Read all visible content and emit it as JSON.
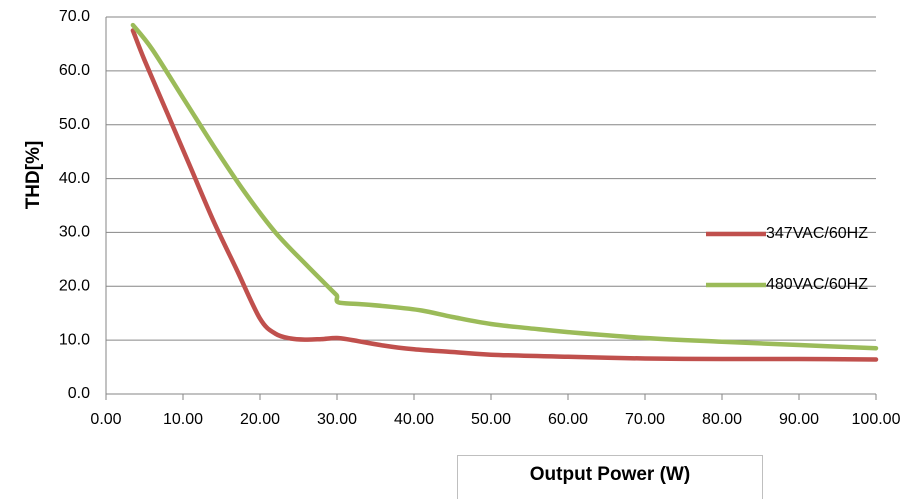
{
  "chart_data": {
    "type": "line",
    "xlabel": "Output Power (W)",
    "ylabel": "THD[%]",
    "xlim": [
      0,
      100
    ],
    "ylim": [
      0,
      70
    ],
    "x_ticks": [
      "0.00",
      "10.00",
      "20.00",
      "30.00",
      "40.00",
      "50.00",
      "60.00",
      "70.00",
      "80.00",
      "90.00",
      "100.00"
    ],
    "y_ticks": [
      "0.0",
      "10.0",
      "20.0",
      "30.0",
      "40.0",
      "50.0",
      "60.0",
      "70.0"
    ],
    "grid": "horizontal",
    "legend_position": "right",
    "series": [
      {
        "name": "347VAC/60HZ",
        "color": "#c0504d",
        "points": [
          [
            3.5,
            67.5
          ],
          [
            5,
            62
          ],
          [
            8,
            52
          ],
          [
            11,
            42
          ],
          [
            14,
            32
          ],
          [
            17,
            23
          ],
          [
            20,
            14
          ],
          [
            22,
            11.2
          ],
          [
            24,
            10.3
          ],
          [
            26,
            10.1
          ],
          [
            28,
            10.2
          ],
          [
            30,
            10.4
          ],
          [
            32,
            10
          ],
          [
            36,
            9
          ],
          [
            40,
            8.3
          ],
          [
            45,
            7.8
          ],
          [
            50,
            7.3
          ],
          [
            60,
            6.9
          ],
          [
            70,
            6.6
          ],
          [
            80,
            6.5
          ],
          [
            90,
            6.5
          ],
          [
            100,
            6.4
          ]
        ]
      },
      {
        "name": "480VAC/60HZ",
        "color": "#9bbb59",
        "points": [
          [
            3.5,
            68.5
          ],
          [
            6,
            64
          ],
          [
            10,
            55
          ],
          [
            14,
            46
          ],
          [
            18,
            37.5
          ],
          [
            22,
            30
          ],
          [
            26,
            24
          ],
          [
            29.5,
            19
          ],
          [
            30,
            18.2
          ],
          [
            30.2,
            17
          ],
          [
            33,
            16.7
          ],
          [
            37,
            16.2
          ],
          [
            41,
            15.5
          ],
          [
            45,
            14.3
          ],
          [
            50,
            13
          ],
          [
            55,
            12.2
          ],
          [
            60,
            11.5
          ],
          [
            70,
            10.4
          ],
          [
            80,
            9.7
          ],
          [
            90,
            9.1
          ],
          [
            100,
            8.5
          ]
        ]
      }
    ]
  }
}
